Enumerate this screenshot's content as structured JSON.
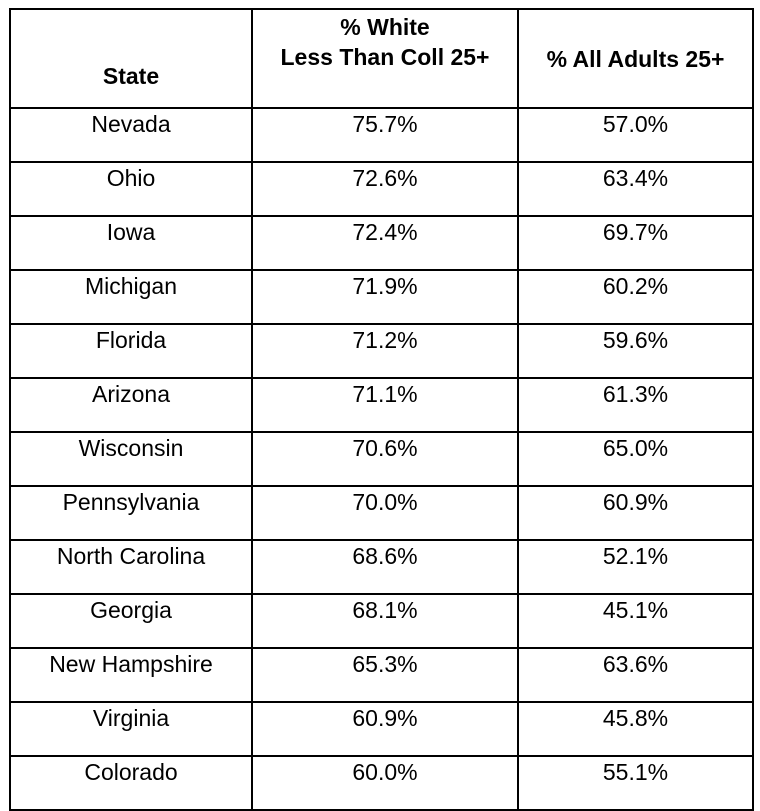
{
  "table": {
    "headers": {
      "state": "State",
      "white_line1": "% White",
      "white_line2": "Less Than Coll 25+",
      "all_adults": "% All Adults 25+"
    },
    "rows": [
      {
        "state": "Nevada",
        "white_less_than_coll": "75.7%",
        "all_adults": "57.0%"
      },
      {
        "state": "Ohio",
        "white_less_than_coll": "72.6%",
        "all_adults": "63.4%"
      },
      {
        "state": "Iowa",
        "white_less_than_coll": "72.4%",
        "all_adults": "69.7%"
      },
      {
        "state": "Michigan",
        "white_less_than_coll": "71.9%",
        "all_adults": "60.2%"
      },
      {
        "state": "Florida",
        "white_less_than_coll": "71.2%",
        "all_adults": "59.6%"
      },
      {
        "state": "Arizona",
        "white_less_than_coll": "71.1%",
        "all_adults": "61.3%"
      },
      {
        "state": "Wisconsin",
        "white_less_than_coll": "70.6%",
        "all_adults": "65.0%"
      },
      {
        "state": "Pennsylvania",
        "white_less_than_coll": "70.0%",
        "all_adults": "60.9%"
      },
      {
        "state": "North Carolina",
        "white_less_than_coll": "68.6%",
        "all_adults": "52.1%"
      },
      {
        "state": "Georgia",
        "white_less_than_coll": "68.1%",
        "all_adults": "45.1%"
      },
      {
        "state": "New Hampshire",
        "white_less_than_coll": "65.3%",
        "all_adults": "63.6%"
      },
      {
        "state": "Virginia",
        "white_less_than_coll": "60.9%",
        "all_adults": "45.8%"
      },
      {
        "state": "Colorado",
        "white_less_than_coll": "60.0%",
        "all_adults": "55.1%"
      }
    ]
  }
}
